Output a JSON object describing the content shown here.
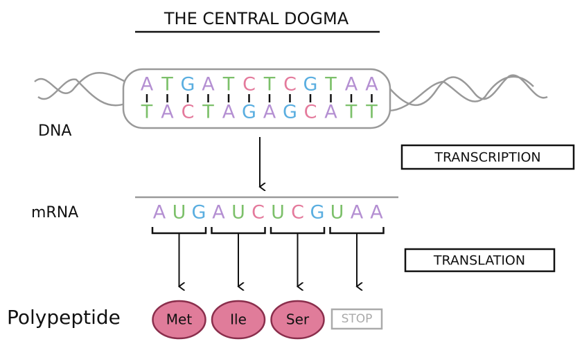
{
  "title": "THE CENTRAL DOGMA",
  "base_colors": {
    "A": "#b48fd2",
    "T": "#7cc06a",
    "G": "#5aaee0",
    "C": "#e47a9c",
    "U": "#7cc06a"
  },
  "dna": {
    "label": "DNA",
    "top": [
      "A",
      "T",
      "G",
      "A",
      "T",
      "C",
      "T",
      "C",
      "G",
      "T",
      "A",
      "A"
    ],
    "bottom": [
      "T",
      "A",
      "C",
      "T",
      "A",
      "G",
      "A",
      "G",
      "C",
      "A",
      "T",
      "T"
    ]
  },
  "transcription": "TRANSCRIPTION",
  "mrna": {
    "label": "mRNA",
    "bases": [
      "A",
      "U",
      "G",
      "A",
      "U",
      "C",
      "U",
      "C",
      "G",
      "U",
      "A",
      "A"
    ]
  },
  "translation": "TRANSLATION",
  "polypeptide": {
    "label": "Polypeptide",
    "residues": [
      "Met",
      "Ile",
      "Ser"
    ],
    "stop": "STOP"
  }
}
